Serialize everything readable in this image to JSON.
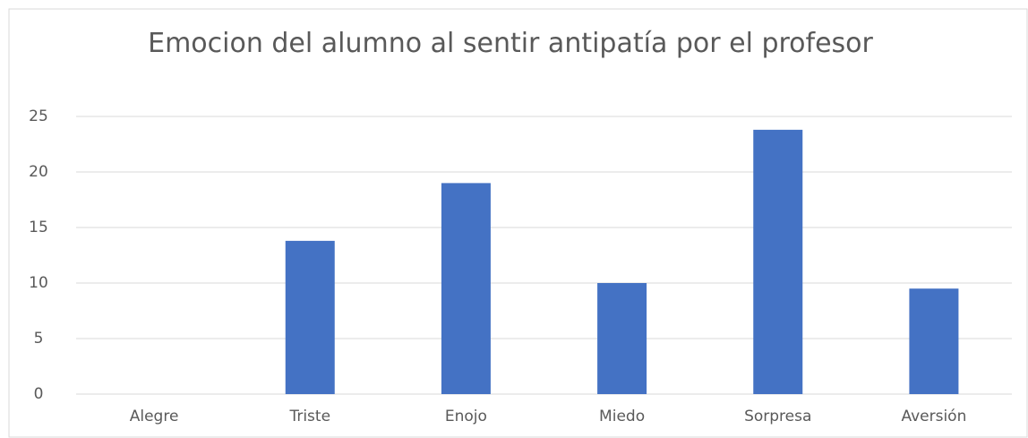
{
  "chart_data": {
    "type": "bar",
    "title": "Emocion del alumno al sentir antipatía por el profesor",
    "categories": [
      "Alegre",
      "Triste",
      "Enojo",
      "Miedo",
      "Sorpresa",
      "Aversión"
    ],
    "values": [
      0,
      13.8,
      19,
      10,
      23.8,
      9.5
    ],
    "color": "#4472c4",
    "ylim": [
      0,
      25
    ],
    "yticks": [
      0,
      5,
      10,
      15,
      20,
      25
    ],
    "grid": true
  }
}
